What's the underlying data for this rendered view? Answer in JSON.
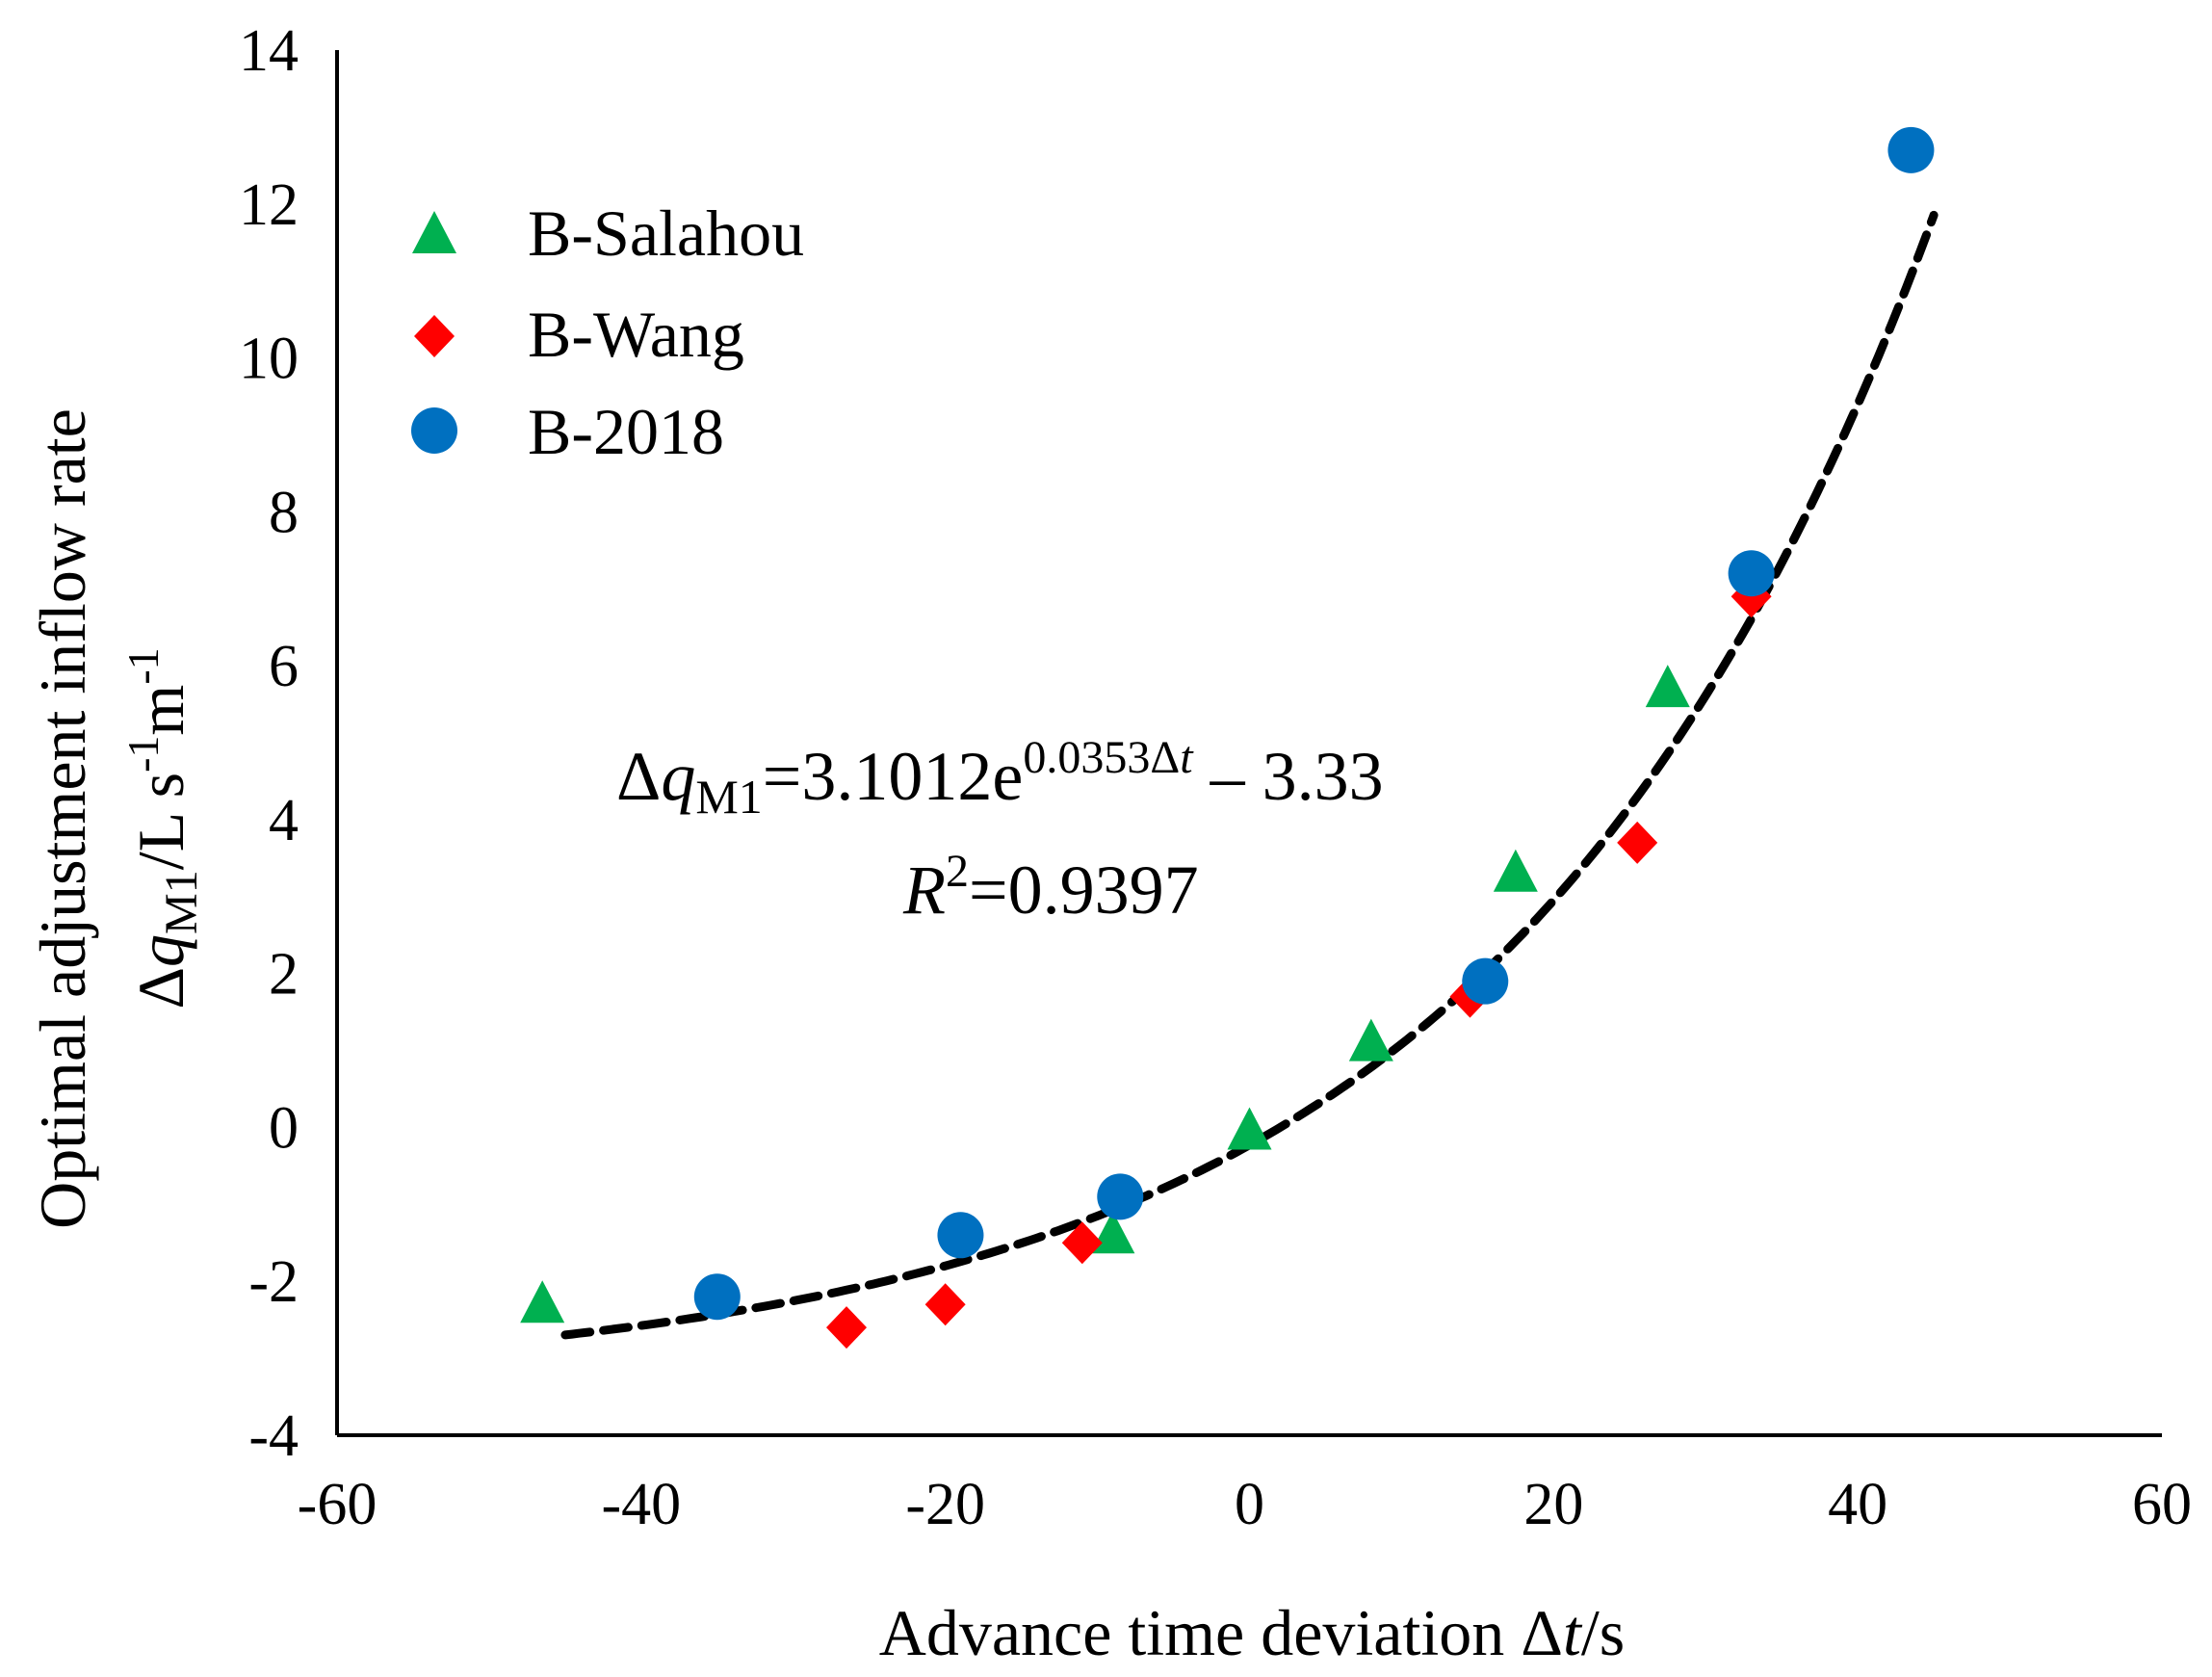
{
  "chart_data": {
    "type": "scatter",
    "xlabel": "Advance time deviation Δt/s",
    "xlabel_parts": [
      "Advance time deviation Δ",
      "t",
      "/s"
    ],
    "ylabel_line1": "Optimal adjustment inflow rate",
    "ylabel_line2": "Δq_M1/L s^-1 m^-1",
    "ylabel2_parts": {
      "delta": "Δ",
      "q": "q",
      "sub": "M1",
      "unit1": "/L s",
      "sup1": "-1",
      "unit2": "m",
      "sup2": "-1"
    },
    "xlim": [
      -60,
      60
    ],
    "ylim": [
      -4,
      14
    ],
    "xticks": [
      -60,
      -40,
      -20,
      0,
      20,
      40,
      60
    ],
    "yticks": [
      -4,
      -2,
      0,
      2,
      4,
      6,
      8,
      10,
      12,
      14
    ],
    "legend_position": "top-left",
    "series": [
      {
        "name": "B-Salahou",
        "marker": "triangle",
        "color": "#00b050",
        "points": [
          [
            -46.5,
            -2.3
          ],
          [
            -9,
            -1.4
          ],
          [
            0,
            -0.05
          ],
          [
            8,
            1.1
          ],
          [
            17.5,
            3.3
          ],
          [
            27.5,
            5.7
          ]
        ]
      },
      {
        "name": "B-Wang",
        "marker": "diamond",
        "color": "#ff0000",
        "points": [
          [
            -26.5,
            -2.6
          ],
          [
            -20,
            -2.3
          ],
          [
            -11,
            -1.5
          ],
          [
            14.5,
            1.7
          ],
          [
            25.5,
            3.7
          ],
          [
            33,
            6.9
          ]
        ]
      },
      {
        "name": "B-2018",
        "marker": "circle",
        "color": "#0070c0",
        "points": [
          [
            -35,
            -2.2
          ],
          [
            -19,
            -1.4
          ],
          [
            -8.5,
            -0.9
          ],
          [
            15.5,
            1.9
          ],
          [
            33,
            7.2
          ],
          [
            43.5,
            12.7
          ]
        ]
      }
    ],
    "fit": {
      "style": "dashed",
      "color": "#000000",
      "a": 3.1012,
      "b": 0.0353,
      "c": -3.33,
      "x_range": [
        -45,
        45
      ],
      "equation_parts": {
        "lhs_delta": "Δ",
        "lhs_q": "q",
        "lhs_sub": "M1",
        "mid": "=3.1012e",
        "exp_num": "0.0353",
        "exp_delta": "Δ",
        "exp_t": "t",
        "tail": " – 3.33"
      },
      "r2_parts": {
        "r": "R",
        "sup": "2",
        "value": "=0.9397"
      }
    }
  }
}
